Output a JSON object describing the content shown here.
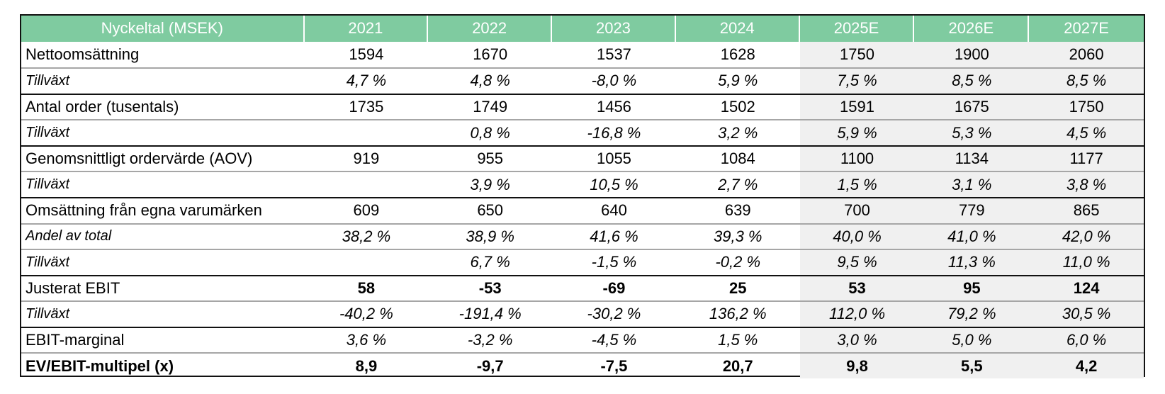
{
  "header": {
    "label": "Nyckeltal (MSEK)",
    "years": [
      "2021",
      "2022",
      "2023",
      "2024",
      "2025E",
      "2026E",
      "2027E"
    ]
  },
  "rows": [
    {
      "label": "Nettoomsättning",
      "values": [
        "1594",
        "1670",
        "1537",
        "1628",
        "1750",
        "1900",
        "2060"
      ],
      "style": "main"
    },
    {
      "label": "Tillväxt",
      "values": [
        "4,7 %",
        "4,8 %",
        "-8,0 %",
        "5,9 %",
        "7,5 %",
        "8,5 %",
        "8,5 %"
      ],
      "style": "sub"
    },
    {
      "label": "Antal order (tusentals)",
      "values": [
        "1735",
        "1749",
        "1456",
        "1502",
        "1591",
        "1675",
        "1750"
      ],
      "style": "main"
    },
    {
      "label": "Tillväxt",
      "values": [
        "",
        "0,8 %",
        "-16,8 %",
        "3,2 %",
        "5,9 %",
        "5,3 %",
        "4,5 %"
      ],
      "style": "sub"
    },
    {
      "label": "Genomsnittligt ordervärde (AOV)",
      "values": [
        "919",
        "955",
        "1055",
        "1084",
        "1100",
        "1134",
        "1177"
      ],
      "style": "main"
    },
    {
      "label": "Tillväxt",
      "values": [
        "",
        "3,9 %",
        "10,5 %",
        "2,7 %",
        "1,5 %",
        "3,1 %",
        "3,8 %"
      ],
      "style": "sub"
    },
    {
      "label": "Omsättning från egna varumärken",
      "values": [
        "609",
        "650",
        "640",
        "639",
        "700",
        "779",
        "865"
      ],
      "style": "main"
    },
    {
      "label": "Andel av total",
      "values": [
        "38,2 %",
        "38,9 %",
        "41,6 %",
        "39,3 %",
        "40,0 %",
        "41,0 %",
        "42,0 %"
      ],
      "style": "sub"
    },
    {
      "label": "Tillväxt",
      "values": [
        "",
        "6,7 %",
        "-1,5 %",
        "-0,2 %",
        "9,5 %",
        "11,3 %",
        "11,0 %"
      ],
      "style": "sub"
    },
    {
      "label": "Justerat EBIT",
      "values": [
        "58",
        "-53",
        "-69",
        "25",
        "53",
        "95",
        "124"
      ],
      "style": "main-boldvals"
    },
    {
      "label": "Tillväxt",
      "values": [
        "-40,2 %",
        "-191,4 %",
        "-30,2 %",
        "136,2 %",
        "112,0 %",
        "79,2 %",
        "30,5 %"
      ],
      "style": "sub"
    },
    {
      "label": "EBIT-marginal",
      "values": [
        "3,6 %",
        "-3,2 %",
        "-4,5 %",
        "1,5 %",
        "3,0 %",
        "5,0 %",
        "6,0 %"
      ],
      "style": "main-italvals"
    },
    {
      "label": "EV/EBIT-multipel (x)",
      "values": [
        "8,9",
        "-9,7",
        "-7,5",
        "20,7",
        "9,8",
        "5,5",
        "4,2"
      ],
      "style": "bold-all"
    }
  ],
  "colors": {
    "header_bg": "#7fcba0",
    "estimate_bg": "#f0f0f0"
  }
}
